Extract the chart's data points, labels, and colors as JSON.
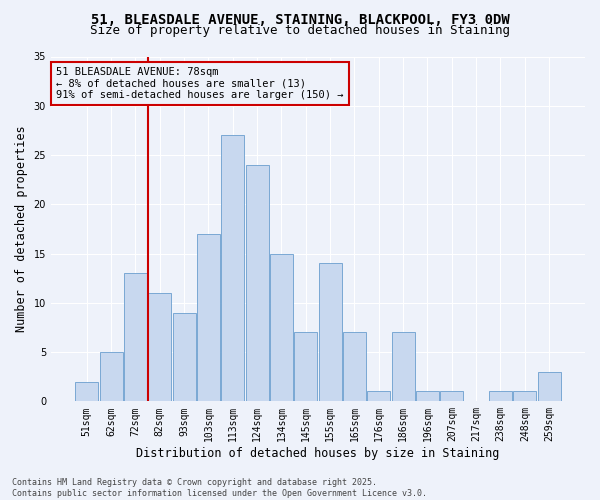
{
  "title_line1": "51, BLEASDALE AVENUE, STAINING, BLACKPOOL, FY3 0DW",
  "title_line2": "Size of property relative to detached houses in Staining",
  "xlabel": "Distribution of detached houses by size in Staining",
  "ylabel": "Number of detached properties",
  "categories": [
    "51sqm",
    "62sqm",
    "72sqm",
    "82sqm",
    "93sqm",
    "103sqm",
    "113sqm",
    "124sqm",
    "134sqm",
    "145sqm",
    "155sqm",
    "165sqm",
    "176sqm",
    "186sqm",
    "196sqm",
    "207sqm",
    "217sqm",
    "238sqm",
    "248sqm",
    "259sqm"
  ],
  "values": [
    2,
    5,
    13,
    11,
    9,
    17,
    27,
    24,
    15,
    7,
    14,
    7,
    1,
    7,
    1,
    1,
    0,
    1,
    1,
    3
  ],
  "bar_color": "#c8d8ef",
  "bar_edge_color": "#7aa8d4",
  "vline_x_index": 2,
  "vline_color": "#cc0000",
  "annotation_text": "51 BLEASDALE AVENUE: 78sqm\n← 8% of detached houses are smaller (13)\n91% of semi-detached houses are larger (150) →",
  "annotation_box_color": "#cc0000",
  "ylim": [
    0,
    35
  ],
  "yticks": [
    0,
    5,
    10,
    15,
    20,
    25,
    30,
    35
  ],
  "background_color": "#eef2fa",
  "grid_color": "#ffffff",
  "footer_text": "Contains HM Land Registry data © Crown copyright and database right 2025.\nContains public sector information licensed under the Open Government Licence v3.0.",
  "title_fontsize": 10,
  "subtitle_fontsize": 9,
  "axis_label_fontsize": 8.5,
  "tick_fontsize": 7,
  "annotation_fontsize": 7.5,
  "footer_fontsize": 6
}
